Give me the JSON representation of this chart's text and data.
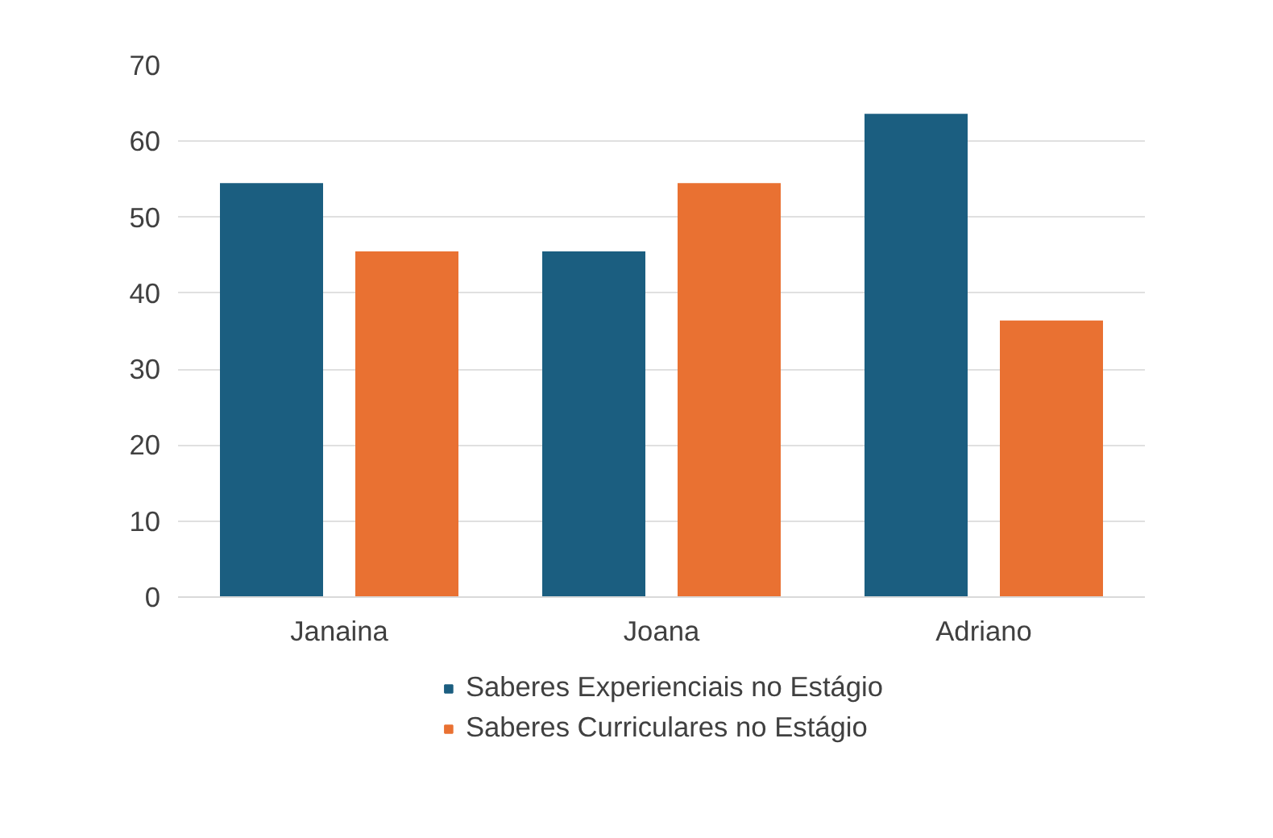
{
  "chart_data": {
    "type": "bar",
    "categories": [
      "Janaina",
      "Joana",
      "Adriano"
    ],
    "series": [
      {
        "name": "Saberes Experienciais no Estágio",
        "color": "#1b5e80",
        "values": [
          54.5,
          45.5,
          63.6
        ]
      },
      {
        "name": "Saberes Curriculares no Estágio",
        "color": "#e97132",
        "values": [
          45.5,
          54.5,
          36.4
        ]
      }
    ],
    "ylim": [
      0,
      70
    ],
    "yticks": [
      0,
      10,
      20,
      30,
      40,
      50,
      60,
      70
    ],
    "grid": "y",
    "legend": "bottom"
  }
}
